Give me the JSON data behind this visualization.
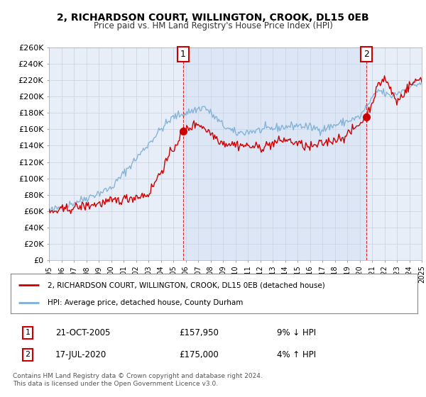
{
  "title": "2, RICHARDSON COURT, WILLINGTON, CROOK, DL15 0EB",
  "subtitle": "Price paid vs. HM Land Registry's House Price Index (HPI)",
  "ylabel_ticks": [
    "£0",
    "£20K",
    "£40K",
    "£60K",
    "£80K",
    "£100K",
    "£120K",
    "£140K",
    "£160K",
    "£180K",
    "£200K",
    "£220K",
    "£240K",
    "£260K"
  ],
  "ylim": [
    0,
    260000
  ],
  "yticks": [
    0,
    20000,
    40000,
    60000,
    80000,
    100000,
    120000,
    140000,
    160000,
    180000,
    200000,
    220000,
    240000,
    260000
  ],
  "x_start_year": 1995,
  "x_end_year": 2025,
  "sale1_date": 2005.8,
  "sale1_price": 157950,
  "sale1_label": "1",
  "sale1_text": "21-OCT-2005",
  "sale1_amount": "£157,950",
  "sale1_hpi": "9% ↓ HPI",
  "sale2_date": 2020.54,
  "sale2_price": 175000,
  "sale2_label": "2",
  "sale2_text": "17-JUL-2020",
  "sale2_amount": "£175,000",
  "sale2_hpi": "4% ↑ HPI",
  "legend_line1": "2, RICHARDSON COURT, WILLINGTON, CROOK, DL15 0EB (detached house)",
  "legend_line2": "HPI: Average price, detached house, County Durham",
  "footer": "Contains HM Land Registry data © Crown copyright and database right 2024.\nThis data is licensed under the Open Government Licence v3.0.",
  "hpi_color": "#7bafd4",
  "price_color": "#cc0000",
  "bg_color": "#ffffff",
  "grid_color": "#c8d0e0",
  "plot_bg": "#e8eef8",
  "shade_color": "#dce6f4"
}
